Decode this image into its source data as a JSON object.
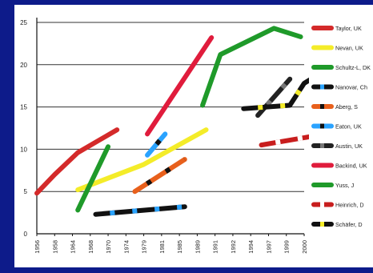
{
  "chart_data": {
    "type": "line",
    "title": "",
    "xlabel": "",
    "ylabel": "",
    "ylim": [
      0,
      25
    ],
    "yticks": [
      "0",
      "5",
      "10",
      "15",
      "20",
      "25"
    ],
    "xticks": [
      "1956",
      "1958",
      "1964",
      "1968",
      "1970",
      "1974",
      "1979",
      "1981",
      "1985",
      "1989",
      "1991",
      "1992",
      "1994",
      "1997",
      "1999",
      "2000"
    ],
    "grid": "horizontal",
    "legend_position": "right",
    "background_color": "#ffffff",
    "frame_color": "#0d1b8a",
    "series": [
      {
        "name": "Taylor, UK",
        "color": "#d42a2a",
        "style": "solid",
        "points": [
          [
            0,
            4.8
          ],
          [
            1,
            7
          ],
          [
            2.3,
            9.6
          ],
          [
            4.5,
            12.3
          ]
        ]
      },
      {
        "name": "Nevan, UK",
        "color": "#f4ec29",
        "style": "solid",
        "points": [
          [
            2.3,
            5.2
          ],
          [
            6,
            8.2
          ],
          [
            9.5,
            12.3
          ]
        ]
      },
      {
        "name": "Schultz-L, DK",
        "color": "#1f9a2a",
        "style": "solid",
        "points": [
          [
            2.3,
            2.8
          ],
          [
            4,
            10.3
          ]
        ]
      },
      {
        "name": "Nanovar, Ch",
        "color": "#111111",
        "style": "dashed",
        "accent": "#2aa3ff",
        "points": [
          [
            3.3,
            2.3
          ],
          [
            8.3,
            3.2
          ]
        ]
      },
      {
        "name": "Aberg, S",
        "color": "#e8601c",
        "style": "dashed",
        "accent": "#111111",
        "points": [
          [
            5.5,
            5
          ],
          [
            8.3,
            8.8
          ]
        ]
      },
      {
        "name": "Eaton, UK",
        "color": "#2aa3ff",
        "style": "dashed",
        "accent": "#111111",
        "points": [
          [
            6.2,
            9.3
          ],
          [
            7.2,
            11.8
          ]
        ]
      },
      {
        "name": "Austin, UK",
        "color": "#222222",
        "style": "dashed",
        "accent": "#777777",
        "points": [
          [
            12.4,
            14
          ],
          [
            14.2,
            18.3
          ]
        ]
      },
      {
        "name": "Backind, UK",
        "color": "#e01c3c",
        "style": "solid",
        "points": [
          [
            6.2,
            11.8
          ],
          [
            9.8,
            23.2
          ]
        ]
      },
      {
        "name": "Yuss, J",
        "color": "#1f9a2a",
        "style": "solid",
        "points": [
          [
            9.3,
            15.2
          ],
          [
            10.3,
            21.2
          ],
          [
            13.3,
            24.3
          ],
          [
            14.8,
            23.3
          ]
        ]
      },
      {
        "name": "Heinrich, D",
        "color": "#c81e1e",
        "style": "dashed",
        "accent": "#ffffff",
        "points": [
          [
            12.6,
            10.5
          ],
          [
            16.2,
            11.8
          ]
        ]
      },
      {
        "name": "Schäfer, D",
        "color": "#111111",
        "style": "dashed",
        "accent": "#f4ec29",
        "points": [
          [
            11.6,
            14.8
          ],
          [
            14.2,
            15.2
          ],
          [
            15,
            17.8
          ],
          [
            16.7,
            20
          ]
        ]
      }
    ]
  }
}
